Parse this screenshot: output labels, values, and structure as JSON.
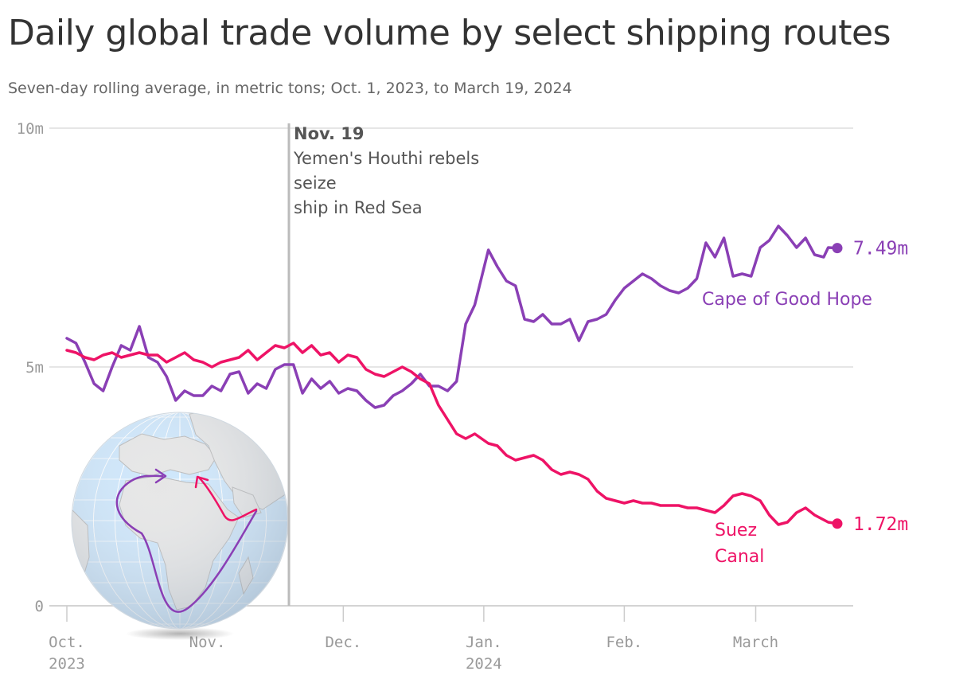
{
  "header": {
    "title": "Daily global trade volume by select shipping routes",
    "subtitle": "Seven-day rolling average, in metric tons; Oct. 1, 2023, to March 19, 2024"
  },
  "colors": {
    "cape": "#8a3fb5",
    "suez": "#ee1366",
    "grid": "#dddddd",
    "annotation_line": "#bbbbbb",
    "ocean": "#cde6fb",
    "land": "#e6e6e6"
  },
  "annotation": {
    "date": "2023-11-19",
    "title": "Nov. 19",
    "lines": [
      "Yemen's Houthi rebels",
      "seize",
      "ship in Red Sea"
    ]
  },
  "chart_data": {
    "type": "line",
    "title": "Daily global trade volume by select shipping routes",
    "subtitle": "Seven-day rolling average, in metric tons; Oct. 1, 2023, to March 19, 2024",
    "ylim": [
      0,
      10000000
    ],
    "y_ticks": [
      {
        "value": 0,
        "label": "0"
      },
      {
        "value": 5000000,
        "label": "5m"
      },
      {
        "value": 10000000,
        "label": "10m"
      }
    ],
    "xlim": [
      "2023-10-01",
      "2024-03-19"
    ],
    "x_ticks": [
      {
        "date": "2023-10-01",
        "label": [
          "Oct.",
          "2023"
        ]
      },
      {
        "date": "2023-11-01",
        "label": [
          "Nov."
        ]
      },
      {
        "date": "2023-12-01",
        "label": [
          "Dec."
        ]
      },
      {
        "date": "2024-01-01",
        "label": [
          "Jan.",
          "2024"
        ]
      },
      {
        "date": "2024-02-01",
        "label": [
          "Feb."
        ]
      },
      {
        "date": "2024-03-01",
        "label": [
          "March"
        ]
      }
    ],
    "grid": true,
    "series": [
      {
        "name": "Cape of Good Hope",
        "end_label": "7.49m",
        "color": "#8a3fb5",
        "points": [
          [
            "2023-10-01",
            5600000
          ],
          [
            "2023-10-03",
            5500000
          ],
          [
            "2023-10-05",
            5100000
          ],
          [
            "2023-10-07",
            4650000
          ],
          [
            "2023-10-09",
            4500000
          ],
          [
            "2023-10-11",
            5000000
          ],
          [
            "2023-10-13",
            5450000
          ],
          [
            "2023-10-15",
            5350000
          ],
          [
            "2023-10-17",
            5850000
          ],
          [
            "2023-10-19",
            5200000
          ],
          [
            "2023-10-21",
            5100000
          ],
          [
            "2023-10-23",
            4800000
          ],
          [
            "2023-10-25",
            4300000
          ],
          [
            "2023-10-27",
            4500000
          ],
          [
            "2023-10-29",
            4400000
          ],
          [
            "2023-10-31",
            4400000
          ],
          [
            "2023-11-02",
            4600000
          ],
          [
            "2023-11-04",
            4500000
          ],
          [
            "2023-11-06",
            4850000
          ],
          [
            "2023-11-08",
            4900000
          ],
          [
            "2023-11-10",
            4450000
          ],
          [
            "2023-11-12",
            4650000
          ],
          [
            "2023-11-14",
            4550000
          ],
          [
            "2023-11-16",
            4950000
          ],
          [
            "2023-11-18",
            5050000
          ],
          [
            "2023-11-20",
            5050000
          ],
          [
            "2023-11-22",
            4450000
          ],
          [
            "2023-11-24",
            4750000
          ],
          [
            "2023-11-26",
            4550000
          ],
          [
            "2023-11-28",
            4700000
          ],
          [
            "2023-11-30",
            4450000
          ],
          [
            "2023-12-02",
            4550000
          ],
          [
            "2023-12-04",
            4500000
          ],
          [
            "2023-12-06",
            4300000
          ],
          [
            "2023-12-08",
            4150000
          ],
          [
            "2023-12-10",
            4200000
          ],
          [
            "2023-12-12",
            4400000
          ],
          [
            "2023-12-14",
            4500000
          ],
          [
            "2023-12-16",
            4650000
          ],
          [
            "2023-12-18",
            4850000
          ],
          [
            "2023-12-20",
            4600000
          ],
          [
            "2023-12-22",
            4600000
          ],
          [
            "2023-12-24",
            4500000
          ],
          [
            "2023-12-26",
            4700000
          ],
          [
            "2023-12-28",
            5900000
          ],
          [
            "2023-12-30",
            6300000
          ],
          [
            "2024-01-02",
            7450000
          ],
          [
            "2024-01-04",
            7100000
          ],
          [
            "2024-01-06",
            6800000
          ],
          [
            "2024-01-08",
            6700000
          ],
          [
            "2024-01-10",
            6000000
          ],
          [
            "2024-01-12",
            5950000
          ],
          [
            "2024-01-14",
            6100000
          ],
          [
            "2024-01-16",
            5900000
          ],
          [
            "2024-01-18",
            5900000
          ],
          [
            "2024-01-20",
            6000000
          ],
          [
            "2024-01-22",
            5550000
          ],
          [
            "2024-01-24",
            5950000
          ],
          [
            "2024-01-26",
            6000000
          ],
          [
            "2024-01-28",
            6100000
          ],
          [
            "2024-01-30",
            6400000
          ],
          [
            "2024-02-01",
            6650000
          ],
          [
            "2024-02-03",
            6800000
          ],
          [
            "2024-02-05",
            6950000
          ],
          [
            "2024-02-07",
            6850000
          ],
          [
            "2024-02-09",
            6700000
          ],
          [
            "2024-02-11",
            6600000
          ],
          [
            "2024-02-13",
            6550000
          ],
          [
            "2024-02-15",
            6650000
          ],
          [
            "2024-02-17",
            6850000
          ],
          [
            "2024-02-19",
            7600000
          ],
          [
            "2024-02-21",
            7300000
          ],
          [
            "2024-02-23",
            7700000
          ],
          [
            "2024-02-25",
            6900000
          ],
          [
            "2024-02-27",
            6950000
          ],
          [
            "2024-02-29",
            6900000
          ],
          [
            "2024-03-02",
            7500000
          ],
          [
            "2024-03-04",
            7650000
          ],
          [
            "2024-03-06",
            7950000
          ],
          [
            "2024-03-08",
            7750000
          ],
          [
            "2024-03-10",
            7500000
          ],
          [
            "2024-03-12",
            7700000
          ],
          [
            "2024-03-14",
            7350000
          ],
          [
            "2024-03-16",
            7300000
          ],
          [
            "2024-03-17",
            7500000
          ],
          [
            "2024-03-19",
            7490000
          ]
        ]
      },
      {
        "name": "Suez Canal",
        "end_label": "1.72m",
        "color": "#ee1366",
        "points": [
          [
            "2023-10-01",
            5350000
          ],
          [
            "2023-10-03",
            5300000
          ],
          [
            "2023-10-05",
            5200000
          ],
          [
            "2023-10-07",
            5150000
          ],
          [
            "2023-10-09",
            5250000
          ],
          [
            "2023-10-11",
            5300000
          ],
          [
            "2023-10-13",
            5200000
          ],
          [
            "2023-10-15",
            5250000
          ],
          [
            "2023-10-17",
            5300000
          ],
          [
            "2023-10-19",
            5250000
          ],
          [
            "2023-10-21",
            5250000
          ],
          [
            "2023-10-23",
            5100000
          ],
          [
            "2023-10-25",
            5200000
          ],
          [
            "2023-10-27",
            5300000
          ],
          [
            "2023-10-29",
            5150000
          ],
          [
            "2023-10-31",
            5100000
          ],
          [
            "2023-11-02",
            5000000
          ],
          [
            "2023-11-04",
            5100000
          ],
          [
            "2023-11-06",
            5150000
          ],
          [
            "2023-11-08",
            5200000
          ],
          [
            "2023-11-10",
            5350000
          ],
          [
            "2023-11-12",
            5150000
          ],
          [
            "2023-11-14",
            5300000
          ],
          [
            "2023-11-16",
            5450000
          ],
          [
            "2023-11-18",
            5400000
          ],
          [
            "2023-11-20",
            5500000
          ],
          [
            "2023-11-22",
            5300000
          ],
          [
            "2023-11-24",
            5450000
          ],
          [
            "2023-11-26",
            5250000
          ],
          [
            "2023-11-28",
            5300000
          ],
          [
            "2023-11-30",
            5100000
          ],
          [
            "2023-12-02",
            5250000
          ],
          [
            "2023-12-04",
            5200000
          ],
          [
            "2023-12-06",
            4950000
          ],
          [
            "2023-12-08",
            4850000
          ],
          [
            "2023-12-10",
            4800000
          ],
          [
            "2023-12-12",
            4900000
          ],
          [
            "2023-12-14",
            5000000
          ],
          [
            "2023-12-16",
            4900000
          ],
          [
            "2023-12-18",
            4750000
          ],
          [
            "2023-12-20",
            4650000
          ],
          [
            "2023-12-22",
            4200000
          ],
          [
            "2023-12-24",
            3900000
          ],
          [
            "2023-12-26",
            3600000
          ],
          [
            "2023-12-28",
            3500000
          ],
          [
            "2023-12-30",
            3600000
          ],
          [
            "2024-01-02",
            3400000
          ],
          [
            "2024-01-04",
            3350000
          ],
          [
            "2024-01-06",
            3150000
          ],
          [
            "2024-01-08",
            3050000
          ],
          [
            "2024-01-10",
            3100000
          ],
          [
            "2024-01-12",
            3150000
          ],
          [
            "2024-01-14",
            3050000
          ],
          [
            "2024-01-16",
            2850000
          ],
          [
            "2024-01-18",
            2750000
          ],
          [
            "2024-01-20",
            2800000
          ],
          [
            "2024-01-22",
            2750000
          ],
          [
            "2024-01-24",
            2650000
          ],
          [
            "2024-01-26",
            2400000
          ],
          [
            "2024-01-28",
            2250000
          ],
          [
            "2024-01-30",
            2200000
          ],
          [
            "2024-02-01",
            2150000
          ],
          [
            "2024-02-03",
            2200000
          ],
          [
            "2024-02-05",
            2150000
          ],
          [
            "2024-02-07",
            2150000
          ],
          [
            "2024-02-09",
            2100000
          ],
          [
            "2024-02-11",
            2100000
          ],
          [
            "2024-02-13",
            2100000
          ],
          [
            "2024-02-15",
            2050000
          ],
          [
            "2024-02-17",
            2050000
          ],
          [
            "2024-02-19",
            2000000
          ],
          [
            "2024-02-21",
            1950000
          ],
          [
            "2024-02-23",
            2100000
          ],
          [
            "2024-02-25",
            2300000
          ],
          [
            "2024-02-27",
            2350000
          ],
          [
            "2024-02-29",
            2300000
          ],
          [
            "2024-03-02",
            2200000
          ],
          [
            "2024-03-04",
            1900000
          ],
          [
            "2024-03-06",
            1700000
          ],
          [
            "2024-03-08",
            1750000
          ],
          [
            "2024-03-10",
            1950000
          ],
          [
            "2024-03-12",
            2050000
          ],
          [
            "2024-03-14",
            1900000
          ],
          [
            "2024-03-16",
            1800000
          ],
          [
            "2024-03-17",
            1750000
          ],
          [
            "2024-03-19",
            1720000
          ]
        ]
      }
    ]
  }
}
